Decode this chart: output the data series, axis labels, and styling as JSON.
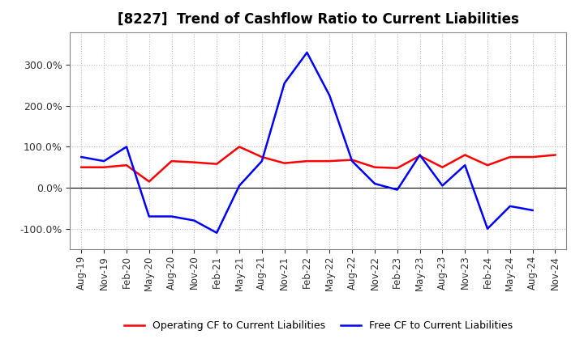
{
  "title": "[8227]  Trend of Cashflow Ratio to Current Liabilities",
  "x_labels": [
    "Aug-19",
    "Nov-19",
    "Feb-20",
    "May-20",
    "Aug-20",
    "Nov-20",
    "Feb-21",
    "May-21",
    "Aug-21",
    "Nov-21",
    "Feb-22",
    "May-22",
    "Aug-22",
    "Nov-22",
    "Feb-23",
    "May-23",
    "Aug-23",
    "Nov-23",
    "Feb-24",
    "May-24",
    "Aug-24",
    "Nov-24"
  ],
  "operating_cf": [
    50,
    50,
    55,
    15,
    65,
    62,
    58,
    100,
    75,
    60,
    65,
    65,
    68,
    50,
    48,
    78,
    50,
    80,
    55,
    75,
    75,
    80
  ],
  "free_cf": [
    75,
    65,
    100,
    -70,
    -70,
    -80,
    -110,
    5,
    65,
    255,
    330,
    225,
    65,
    10,
    -5,
    80,
    5,
    55,
    -100,
    -45,
    -55,
    null
  ],
  "ylim": [
    -150,
    380
  ],
  "yticks": [
    -100,
    0,
    100,
    200,
    300
  ],
  "operating_color": "#FF0000",
  "free_color": "#0000FF",
  "background_color": "#FFFFFF",
  "grid_color": "#AAAAAA",
  "legend_op": "Operating CF to Current Liabilities",
  "legend_free": "Free CF to Current Liabilities",
  "title_fontsize": 12,
  "tick_fontsize": 8.5,
  "ytick_fontsize": 9
}
